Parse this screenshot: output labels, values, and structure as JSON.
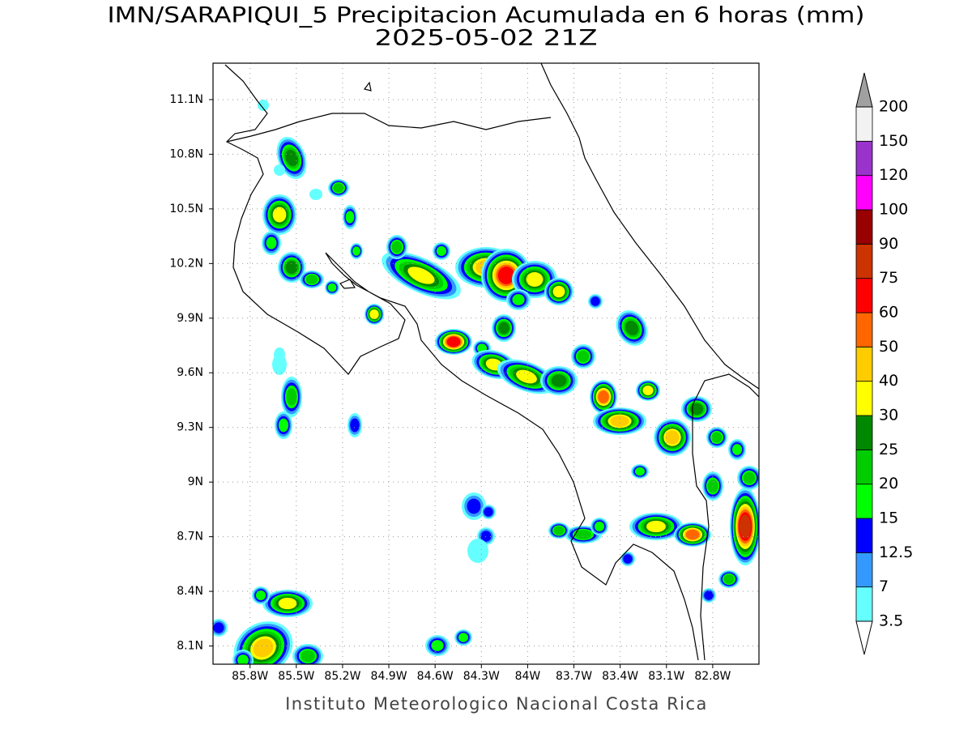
{
  "title": [
    "IMN/SARAPIQUI_5 Precipitacion Acumulada en 6 horas (mm)",
    "2025-05-02 21Z"
  ],
  "footer": "Instituto Meteorologico Nacional Costa Rica",
  "map": {
    "lon_range": [
      -86.04,
      -82.5
    ],
    "lat_range": [
      8.0,
      11.3
    ],
    "grid": true,
    "lat_ticks": [
      {
        "value": 11.1,
        "label": "11.1N"
      },
      {
        "value": 10.8,
        "label": "10.8N"
      },
      {
        "value": 10.5,
        "label": "10.5N"
      },
      {
        "value": 10.2,
        "label": "10.2N"
      },
      {
        "value": 9.9,
        "label": "9.9N"
      },
      {
        "value": 9.6,
        "label": "9.6N"
      },
      {
        "value": 9.3,
        "label": "9.3N"
      },
      {
        "value": 9,
        "label": "9N"
      },
      {
        "value": 8.7,
        "label": "8.7N"
      },
      {
        "value": 8.4,
        "label": "8.4N"
      },
      {
        "value": 8.1,
        "label": "8.1N"
      }
    ],
    "lon_ticks": [
      {
        "value": -85.8,
        "label": "85.8W"
      },
      {
        "value": -85.5,
        "label": "85.5W"
      },
      {
        "value": -85.2,
        "label": "85.2W"
      },
      {
        "value": -84.9,
        "label": "84.9W"
      },
      {
        "value": -84.6,
        "label": "84.6W"
      },
      {
        "value": -84.3,
        "label": "84.3W"
      },
      {
        "value": -84,
        "label": "84W"
      },
      {
        "value": -83.7,
        "label": "83.7W"
      },
      {
        "value": -83.4,
        "label": "83.4W"
      },
      {
        "value": -83.1,
        "label": "83.1W"
      },
      {
        "value": -82.8,
        "label": "82.8W"
      }
    ]
  },
  "colorbar": {
    "levels": [
      3.5,
      7,
      12.5,
      15,
      20,
      25,
      30,
      40,
      50,
      60,
      75,
      90,
      100,
      120,
      150,
      200
    ],
    "colors": [
      "#66ffff",
      "#3399ff",
      "#0000ff",
      "#00ff00",
      "#00cc00",
      "#008800",
      "#ffff00",
      "#ffcc00",
      "#ff6600",
      "#ff0000",
      "#cc3300",
      "#990000",
      "#ff00ff",
      "#9933cc",
      "#f2f2f2"
    ],
    "under_color": "#ffffff",
    "over_color": "#a0a0a0"
  }
}
